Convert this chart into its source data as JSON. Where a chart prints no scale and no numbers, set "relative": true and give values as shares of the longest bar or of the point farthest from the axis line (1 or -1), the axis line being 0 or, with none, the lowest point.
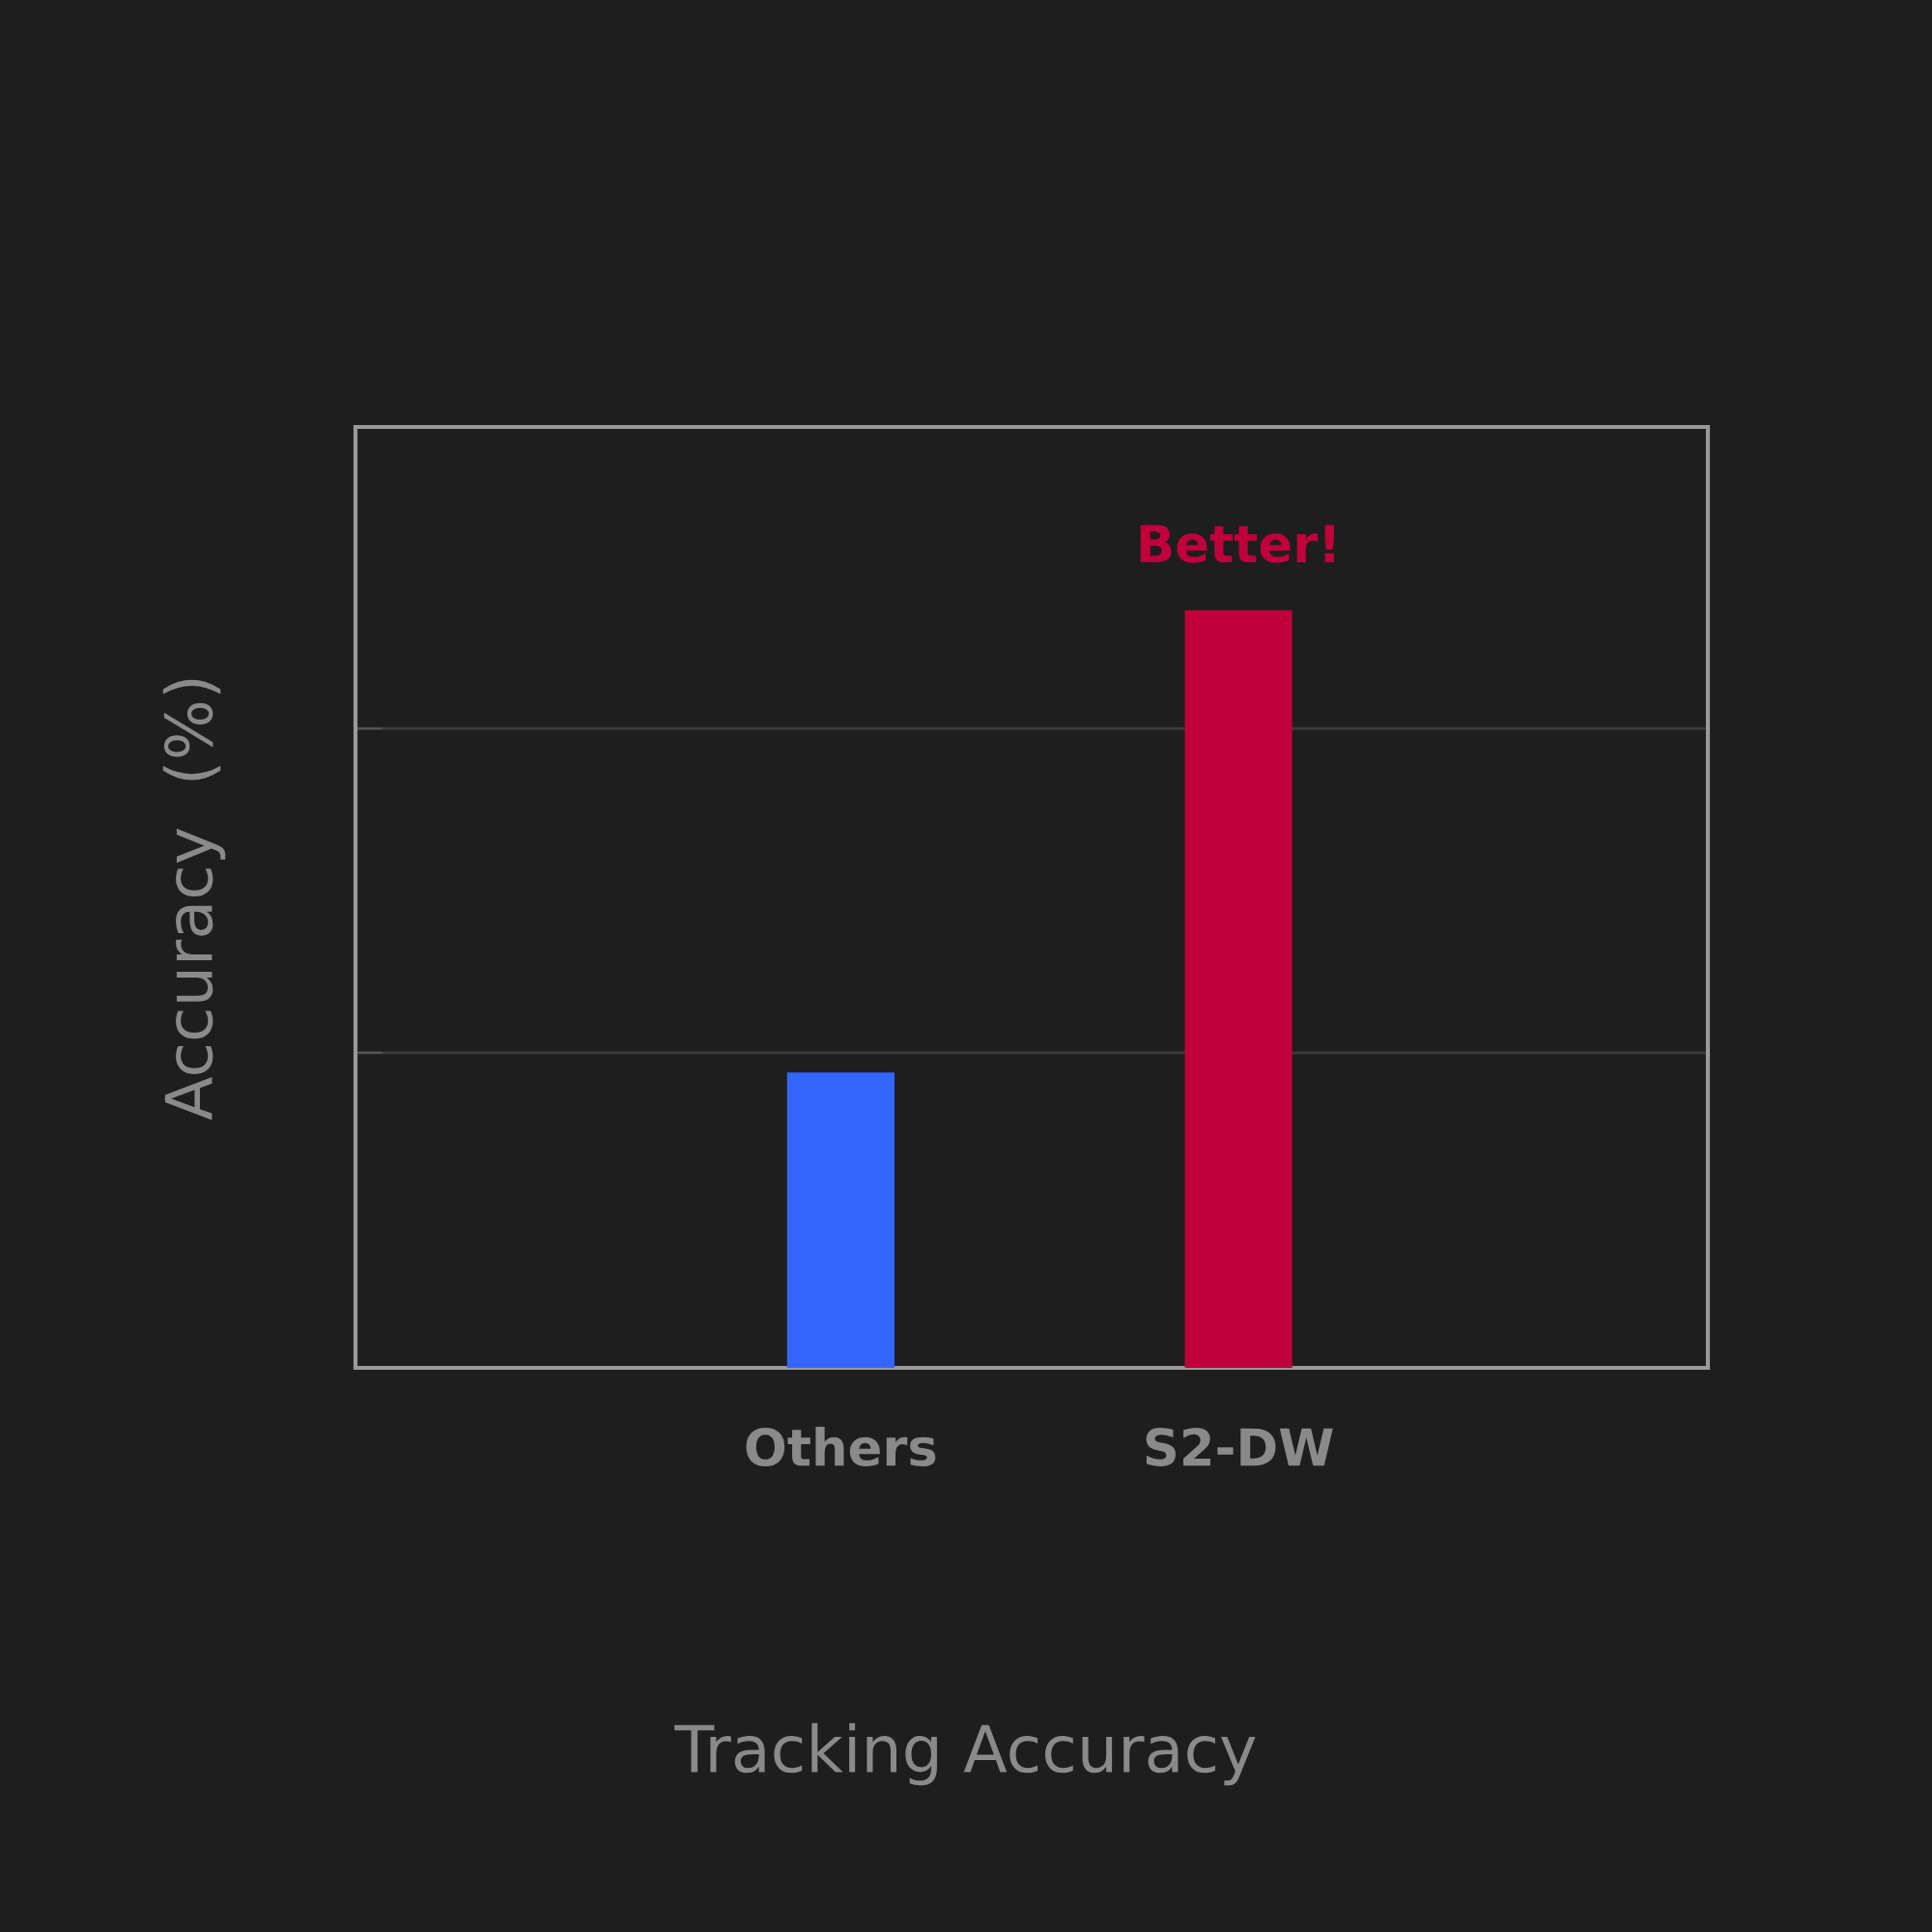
{
  "chart_data": {
    "type": "bar",
    "ylabel": "Accuracy  (%)",
    "categories": [
      "Others",
      "S2-DW"
    ],
    "values": [
      0.39,
      1
    ],
    "colors": [
      "#3366ff",
      "#c0003c"
    ],
    "relative": true,
    "ref_lines": [
      {
        "axis": "y",
        "value": 0.416,
        "color": "#3c3c3c"
      },
      {
        "axis": "y",
        "value": 0.844,
        "color": "#3c3c3c"
      }
    ],
    "annotations": [
      {
        "text": "Better!",
        "x": "S2-DW",
        "y": 1
      },
      "Tracking Accuracy"
    ]
  }
}
